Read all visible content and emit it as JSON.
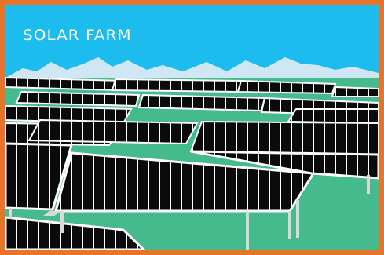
{
  "title": "SOLAR FARM",
  "colors": {
    "frame": "#e8742c",
    "sky": "#1dbcef",
    "mountains": "#cfe6f4",
    "ground": "#45ba8c",
    "panel": "#0b0b0b",
    "panel_lines": "#ffffff",
    "posts": "#d9d9d9"
  },
  "icons": [
    "solar-panel-array",
    "mountain-range"
  ]
}
